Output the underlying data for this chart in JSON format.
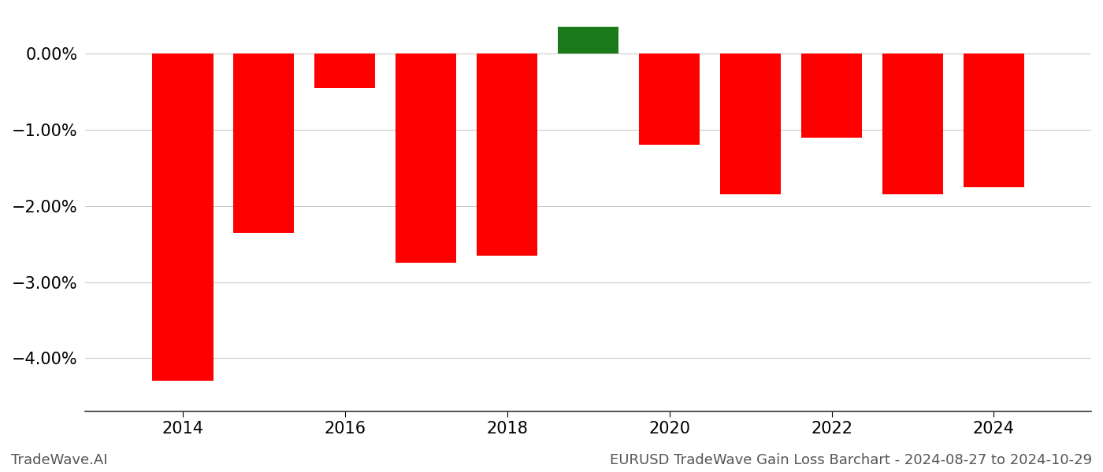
{
  "years": [
    2014,
    2015,
    2016,
    2017,
    2018,
    2019,
    2020,
    2021,
    2022,
    2023,
    2024
  ],
  "values": [
    -4.3,
    -2.35,
    -0.45,
    -2.75,
    -2.65,
    0.35,
    -1.2,
    -1.85,
    -1.1,
    -1.85,
    -1.75
  ],
  "colors": [
    "#ff0000",
    "#ff0000",
    "#ff0000",
    "#ff0000",
    "#ff0000",
    "#1a7a1a",
    "#ff0000",
    "#ff0000",
    "#ff0000",
    "#ff0000",
    "#ff0000"
  ],
  "ylim": [
    -4.7,
    0.55
  ],
  "yticks": [
    0.0,
    -1.0,
    -2.0,
    -3.0,
    -4.0
  ],
  "xticks": [
    2014,
    2016,
    2018,
    2020,
    2022,
    2024
  ],
  "footer_left": "TradeWave.AI",
  "footer_right": "EURUSD TradeWave Gain Loss Barchart - 2024-08-27 to 2024-10-29",
  "bar_width": 0.75,
  "grid_color": "#cccccc",
  "background_color": "#ffffff",
  "font_size_ticks": 15,
  "font_size_footer": 13
}
